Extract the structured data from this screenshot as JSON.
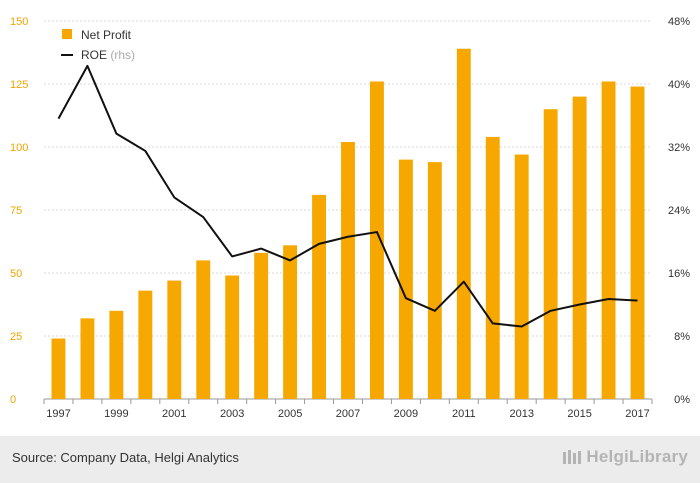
{
  "chart_data": {
    "type": "bar+line",
    "categories": [
      "1997",
      "1998",
      "1999",
      "2000",
      "2001",
      "2002",
      "2003",
      "2004",
      "2005",
      "2006",
      "2007",
      "2008",
      "2009",
      "2010",
      "2011",
      "2012",
      "2013",
      "2014",
      "2015",
      "2016",
      "2017"
    ],
    "x_tick_labels": [
      "1997",
      "1999",
      "2001",
      "2003",
      "2005",
      "2007",
      "2009",
      "2011",
      "2013",
      "2015",
      "2017"
    ],
    "series": [
      {
        "name": "Net Profit",
        "type": "bar",
        "axis": "left",
        "values": [
          24,
          32,
          35,
          43,
          47,
          55,
          49,
          58,
          61,
          81,
          102,
          126,
          95,
          94,
          139,
          104,
          97,
          115,
          120,
          126,
          124
        ]
      },
      {
        "name": "ROE",
        "name_suffix": "(rhs)",
        "type": "line",
        "axis": "right",
        "values": [
          35.6,
          42.3,
          33.7,
          31.5,
          25.6,
          23.1,
          18.1,
          19.1,
          17.6,
          19.7,
          20.6,
          21.2,
          12.8,
          11.2,
          14.9,
          9.6,
          9.2,
          11.2,
          12.0,
          12.7,
          12.5
        ]
      }
    ],
    "y_left": {
      "ylim": [
        0,
        150
      ],
      "ticks": [
        "0",
        "25",
        "50",
        "75",
        "100",
        "125",
        "150"
      ]
    },
    "y_right": {
      "ylim": [
        0,
        48
      ],
      "ticks": [
        "0%",
        "8%",
        "16%",
        "24%",
        "32%",
        "40%",
        "48%"
      ]
    },
    "legend_position": "top-left",
    "grid": "horizontal",
    "colors": {
      "bar": "#f7a800",
      "line": "#111111",
      "grid": "#d8d8d8",
      "left_axis_text": "#f0a500"
    }
  },
  "footer": {
    "source": "Source: Company Data, Helgi Analytics",
    "brand": "HelgiLibrary"
  }
}
